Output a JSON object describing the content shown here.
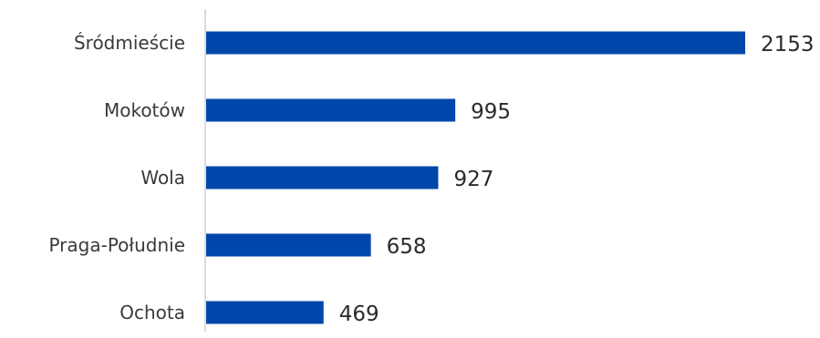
{
  "chart_data": {
    "type": "bar",
    "orientation": "horizontal",
    "categories": [
      "Śródmieście",
      "Mokotów",
      "Wola",
      "Praga-Południe",
      "Ochota"
    ],
    "values": [
      2153,
      995,
      927,
      658,
      469
    ],
    "data_labels": [
      "2153",
      "995",
      "927",
      "658",
      "469"
    ],
    "title": "",
    "xlabel": "",
    "ylabel": "",
    "xlim": [
      0,
      2153
    ],
    "grid": false,
    "legend": "none",
    "bar_color": "#0047ab",
    "axis_color": "#d0d0d0"
  }
}
